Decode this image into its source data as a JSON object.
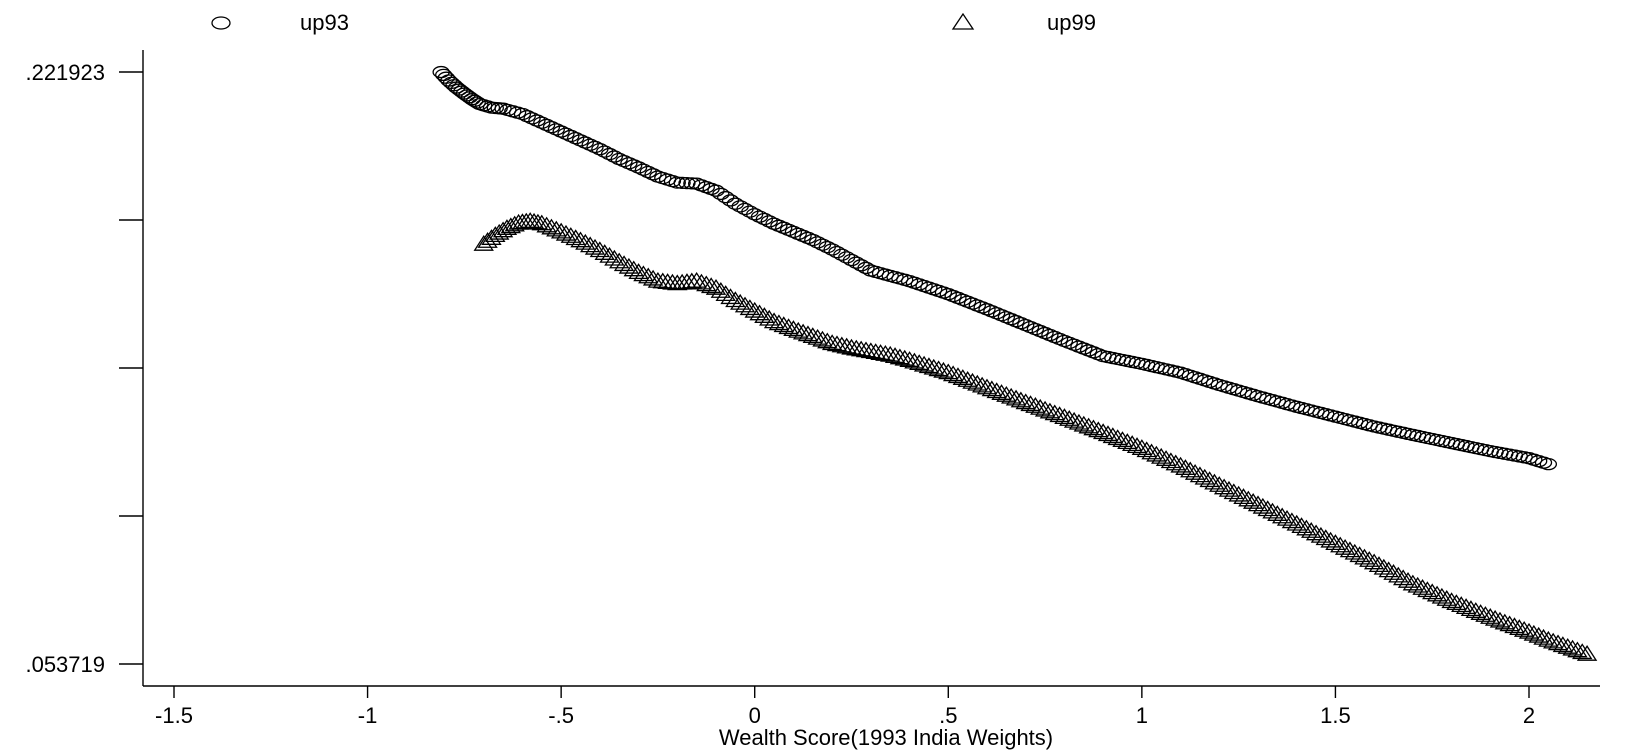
{
  "chart_data": {
    "type": "scatter",
    "title": "",
    "xlabel": "Wealth Score(1993 India Weights)",
    "ylabel": "",
    "x_ticks": [
      "-1.5",
      "-1",
      "-.5",
      "0",
      ".5",
      "1",
      "1.5",
      "2"
    ],
    "x_tick_values": [
      -1.5,
      -1,
      -0.5,
      0,
      0.5,
      1,
      1.5,
      2
    ],
    "y_tick_values": [
      0.053719,
      0.09577,
      0.137821,
      0.179872,
      0.221923
    ],
    "y_tick_labels": [
      ".053719",
      "",
      "",
      "",
      ".221923"
    ],
    "xlim": [
      -1.58,
      2.17
    ],
    "ylim": [
      0.047,
      0.2245
    ],
    "grid": false,
    "legend_position": "top",
    "series": [
      {
        "name": "up93",
        "marker": "circle",
        "points": [
          [
            -0.81,
            0.2219
          ],
          [
            -0.79,
            0.2195
          ],
          [
            -0.77,
            0.2175
          ],
          [
            -0.75,
            0.2158
          ],
          [
            -0.73,
            0.2142
          ],
          [
            -0.71,
            0.2128
          ],
          [
            -0.68,
            0.2118
          ],
          [
            -0.65,
            0.2115
          ],
          [
            -0.6,
            0.21
          ],
          [
            -0.55,
            0.2075
          ],
          [
            -0.5,
            0.205
          ],
          [
            -0.45,
            0.2025
          ],
          [
            -0.4,
            0.2
          ],
          [
            -0.35,
            0.1972
          ],
          [
            -0.3,
            0.1948
          ],
          [
            -0.25,
            0.1922
          ],
          [
            -0.2,
            0.1905
          ],
          [
            -0.15,
            0.1902
          ],
          [
            -0.1,
            0.1882
          ],
          [
            -0.05,
            0.1845
          ],
          [
            0.0,
            0.1815
          ],
          [
            0.05,
            0.1788
          ],
          [
            0.1,
            0.1765
          ],
          [
            0.15,
            0.1742
          ],
          [
            0.2,
            0.1715
          ],
          [
            0.25,
            0.1685
          ],
          [
            0.3,
            0.1655
          ],
          [
            0.35,
            0.164
          ],
          [
            0.4,
            0.1625
          ],
          [
            0.5,
            0.1588
          ],
          [
            0.6,
            0.1545
          ],
          [
            0.7,
            0.15
          ],
          [
            0.8,
            0.1455
          ],
          [
            0.9,
            0.1412
          ],
          [
            1.0,
            0.139
          ],
          [
            1.1,
            0.1365
          ],
          [
            1.2,
            0.133
          ],
          [
            1.3,
            0.1298
          ],
          [
            1.4,
            0.1268
          ],
          [
            1.5,
            0.124
          ],
          [
            1.6,
            0.1212
          ],
          [
            1.7,
            0.1188
          ],
          [
            1.8,
            0.1165
          ],
          [
            1.9,
            0.1142
          ],
          [
            2.0,
            0.1122
          ],
          [
            2.05,
            0.1105
          ]
        ]
      },
      {
        "name": "up99",
        "marker": "triangle",
        "points": [
          [
            -0.7,
            0.173
          ],
          [
            -0.67,
            0.1755
          ],
          [
            -0.64,
            0.1775
          ],
          [
            -0.61,
            0.179
          ],
          [
            -0.58,
            0.1795
          ],
          [
            -0.55,
            0.1788
          ],
          [
            -0.5,
            0.1765
          ],
          [
            -0.45,
            0.174
          ],
          [
            -0.4,
            0.1712
          ],
          [
            -0.35,
            0.168
          ],
          [
            -0.3,
            0.165
          ],
          [
            -0.25,
            0.1625
          ],
          [
            -0.2,
            0.1618
          ],
          [
            -0.15,
            0.1625
          ],
          [
            -0.1,
            0.1605
          ],
          [
            -0.05,
            0.157
          ],
          [
            0.0,
            0.154
          ],
          [
            0.05,
            0.151
          ],
          [
            0.1,
            0.1488
          ],
          [
            0.15,
            0.1468
          ],
          [
            0.2,
            0.1448
          ],
          [
            0.25,
            0.1435
          ],
          [
            0.3,
            0.1425
          ],
          [
            0.35,
            0.1415
          ],
          [
            0.4,
            0.14
          ],
          [
            0.5,
            0.1365
          ],
          [
            0.6,
            0.1322
          ],
          [
            0.7,
            0.128
          ],
          [
            0.8,
            0.1238
          ],
          [
            0.9,
            0.1195
          ],
          [
            1.0,
            0.115
          ],
          [
            1.1,
            0.11
          ],
          [
            1.2,
            0.1045
          ],
          [
            1.3,
            0.099
          ],
          [
            1.4,
            0.0935
          ],
          [
            1.5,
            0.088
          ],
          [
            1.6,
            0.0825
          ],
          [
            1.7,
            0.0765
          ],
          [
            1.8,
            0.0715
          ],
          [
            1.9,
            0.067
          ],
          [
            2.0,
            0.0628
          ],
          [
            2.05,
            0.0605
          ],
          [
            2.1,
            0.0585
          ],
          [
            2.15,
            0.0565
          ]
        ]
      }
    ]
  }
}
